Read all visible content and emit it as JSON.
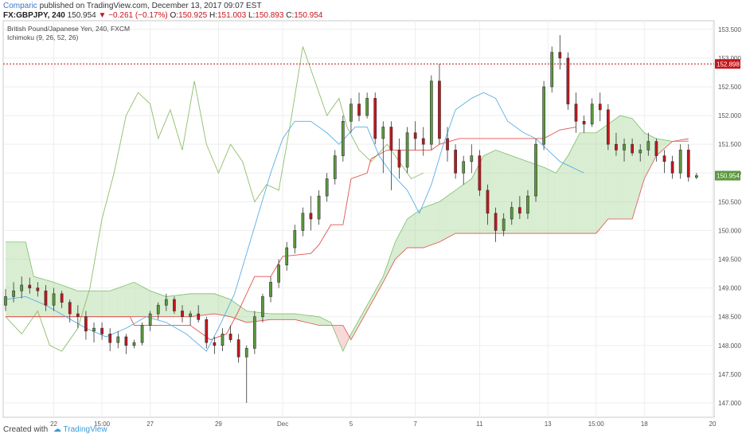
{
  "header": {
    "author": "Comparic",
    "published": "published on TradingView.com, December 13, 2017 09:07 EST"
  },
  "quote": {
    "symbol": "FX:GBPJPY, 240",
    "last": "150.954",
    "change": "▼ −0.261 (−0.17%)",
    "open_label": "O:",
    "open": "150.925",
    "high_label": "H:",
    "high": "151.003",
    "low_label": "L:",
    "low": "150.893",
    "close_label": "C:",
    "close": "150.954"
  },
  "footer": {
    "created_with": "Created with",
    "brand": "TradingView"
  },
  "colors": {
    "up": "#5b9a3c",
    "down": "#c4151c",
    "kijun": "#e0524f",
    "tenkan": "#5aaee6",
    "chikou": "#8fbd6a",
    "cloud_green": "#a8d89a",
    "cloud_red": "#f4a9a9"
  },
  "chart_data": {
    "type": "candlestick",
    "title": "British Pound/Japanese Yen, 240, FXCM",
    "indicator": "Ichimoku (9, 26, 52, 26)",
    "ylim": [
      146.75,
      153.65
    ],
    "xlim": [
      0,
      175
    ],
    "y_ticks": [
      "147.000",
      "147.500",
      "148.000",
      "148.500",
      "149.000",
      "149.500",
      "150.000",
      "150.500",
      "151.000",
      "151.500",
      "152.000",
      "152.500",
      "153.000",
      "153.500"
    ],
    "x_ticks": [
      {
        "pos": 12,
        "label": "22"
      },
      {
        "pos": 24,
        "label": "15:00"
      },
      {
        "pos": 36,
        "label": "27"
      },
      {
        "pos": 53,
        "label": "29"
      },
      {
        "pos": 69,
        "label": "Dec"
      },
      {
        "pos": 86,
        "label": "5"
      },
      {
        "pos": 102,
        "label": "7"
      },
      {
        "pos": 118,
        "label": "11"
      },
      {
        "pos": 135,
        "label": "13"
      },
      {
        "pos": 147,
        "label": "15:00"
      },
      {
        "pos": 159,
        "label": "18"
      },
      {
        "pos": 176,
        "label": "20"
      }
    ],
    "price_line": {
      "value": 152.898,
      "label": "152.898"
    },
    "last_price": {
      "value": 150.954,
      "label": "150.954"
    },
    "ohlc": [
      [
        148.7,
        148.98,
        148.6,
        148.85
      ],
      [
        148.85,
        149.1,
        148.75,
        148.95
      ],
      [
        148.95,
        149.2,
        148.82,
        149.05
      ],
      [
        149.05,
        149.18,
        148.9,
        149.0
      ],
      [
        149.0,
        149.1,
        148.85,
        148.95
      ],
      [
        148.95,
        149.05,
        148.6,
        148.7
      ],
      [
        148.7,
        149.0,
        148.6,
        148.9
      ],
      [
        148.9,
        148.95,
        148.65,
        148.75
      ],
      [
        148.75,
        148.8,
        148.4,
        148.55
      ],
      [
        148.55,
        148.7,
        148.3,
        148.5
      ],
      [
        148.5,
        148.6,
        148.1,
        148.25
      ],
      [
        148.25,
        148.4,
        148.05,
        148.3
      ],
      [
        148.3,
        148.4,
        148.1,
        148.2
      ],
      [
        148.2,
        148.3,
        147.9,
        148.05
      ],
      [
        148.05,
        148.25,
        147.95,
        148.15
      ],
      [
        148.15,
        148.2,
        147.85,
        148.0
      ],
      [
        148.0,
        148.1,
        147.95,
        148.05
      ],
      [
        148.05,
        148.4,
        148.0,
        148.35
      ],
      [
        148.35,
        148.6,
        148.25,
        148.55
      ],
      [
        148.55,
        148.75,
        148.45,
        148.7
      ],
      [
        148.7,
        148.9,
        148.6,
        148.8
      ],
      [
        148.8,
        148.85,
        148.55,
        148.6
      ],
      [
        148.6,
        148.7,
        148.4,
        148.5
      ],
      [
        148.5,
        148.6,
        148.35,
        148.55
      ],
      [
        148.55,
        148.7,
        148.4,
        148.45
      ],
      [
        148.45,
        148.5,
        147.95,
        148.05
      ],
      [
        148.05,
        148.15,
        147.85,
        148.0
      ],
      [
        148.0,
        148.3,
        147.9,
        148.2
      ],
      [
        148.2,
        148.35,
        148.05,
        148.1
      ],
      [
        148.1,
        148.2,
        147.7,
        147.8
      ],
      [
        147.8,
        148.0,
        147.0,
        147.95
      ],
      [
        147.95,
        148.6,
        147.85,
        148.5
      ],
      [
        148.5,
        148.9,
        148.4,
        148.85
      ],
      [
        148.85,
        149.2,
        148.75,
        149.1
      ],
      [
        149.1,
        149.5,
        149.0,
        149.4
      ],
      [
        149.4,
        149.8,
        149.3,
        149.7
      ],
      [
        149.7,
        150.1,
        149.6,
        150.0
      ],
      [
        150.0,
        150.4,
        149.9,
        150.3
      ],
      [
        150.3,
        150.6,
        150.0,
        150.2
      ],
      [
        150.2,
        150.7,
        150.1,
        150.6
      ],
      [
        150.6,
        151.0,
        150.5,
        150.9
      ],
      [
        150.9,
        151.4,
        150.8,
        151.3
      ],
      [
        151.3,
        152.0,
        151.2,
        151.9
      ],
      [
        151.9,
        152.3,
        151.7,
        152.2
      ],
      [
        152.2,
        152.4,
        151.9,
        152.0
      ],
      [
        152.0,
        152.4,
        151.95,
        152.3
      ],
      [
        152.3,
        152.4,
        151.5,
        151.6
      ],
      [
        151.6,
        151.9,
        151.0,
        151.8
      ],
      [
        151.8,
        151.9,
        150.7,
        151.4
      ],
      [
        151.4,
        151.6,
        150.9,
        151.1
      ],
      [
        151.1,
        151.8,
        151.0,
        151.7
      ],
      [
        151.7,
        151.9,
        151.4,
        151.6
      ],
      [
        151.6,
        151.8,
        151.3,
        151.5
      ],
      [
        151.5,
        152.7,
        151.4,
        152.6
      ],
      [
        152.6,
        152.9,
        151.5,
        151.6
      ],
      [
        151.6,
        151.8,
        151.2,
        151.4
      ],
      [
        151.4,
        151.5,
        150.9,
        151.0
      ],
      [
        151.0,
        151.3,
        150.8,
        151.2
      ],
      [
        151.2,
        151.5,
        151.0,
        151.3
      ],
      [
        151.3,
        151.4,
        150.6,
        150.7
      ],
      [
        150.7,
        150.8,
        150.1,
        150.3
      ],
      [
        150.3,
        150.4,
        149.8,
        150.0
      ],
      [
        150.0,
        150.3,
        149.9,
        150.2
      ],
      [
        150.2,
        150.5,
        150.1,
        150.4
      ],
      [
        150.4,
        150.6,
        150.2,
        150.3
      ],
      [
        150.3,
        150.7,
        150.2,
        150.6
      ],
      [
        150.6,
        151.6,
        150.5,
        151.5
      ],
      [
        151.5,
        152.6,
        151.4,
        152.5
      ],
      [
        152.5,
        153.2,
        152.4,
        153.1
      ],
      [
        153.1,
        153.4,
        152.8,
        153.0
      ],
      [
        153.0,
        153.1,
        152.1,
        152.2
      ],
      [
        152.2,
        152.4,
        151.7,
        151.9
      ],
      [
        151.9,
        152.0,
        151.7,
        151.85
      ],
      [
        151.85,
        152.3,
        151.8,
        152.2
      ],
      [
        152.2,
        152.4,
        151.9,
        152.1
      ],
      [
        152.1,
        152.2,
        151.4,
        151.5
      ],
      [
        151.5,
        151.7,
        151.3,
        151.4
      ],
      [
        151.4,
        151.6,
        151.2,
        151.5
      ],
      [
        151.5,
        151.6,
        151.3,
        151.35
      ],
      [
        151.35,
        151.5,
        151.2,
        151.4
      ],
      [
        151.4,
        151.7,
        151.3,
        151.55
      ],
      [
        151.55,
        151.6,
        151.2,
        151.3
      ],
      [
        151.3,
        151.4,
        151.0,
        151.2
      ],
      [
        151.2,
        151.3,
        150.9,
        151.0
      ],
      [
        151.0,
        151.5,
        150.9,
        151.4
      ],
      [
        151.4,
        151.5,
        150.85,
        150.93
      ],
      [
        150.925,
        151.003,
        150.893,
        150.954
      ]
    ],
    "kijun": [
      {
        "x": 0,
        "y": 148.5
      },
      {
        "x": 30,
        "y": 148.5
      },
      {
        "x": 31,
        "y": 148.5
      },
      {
        "x": 32,
        "y": 148.35
      },
      {
        "x": 40,
        "y": 148.35
      },
      {
        "x": 46,
        "y": 148.35
      },
      {
        "x": 51,
        "y": 148.1
      },
      {
        "x": 55,
        "y": 148.2
      },
      {
        "x": 58,
        "y": 148.6
      },
      {
        "x": 62,
        "y": 149.2
      },
      {
        "x": 66,
        "y": 149.2
      },
      {
        "x": 69,
        "y": 149.55
      },
      {
        "x": 76,
        "y": 149.6
      },
      {
        "x": 78,
        "y": 149.75
      },
      {
        "x": 81,
        "y": 150.1
      },
      {
        "x": 84,
        "y": 150.1
      },
      {
        "x": 86,
        "y": 150.9
      },
      {
        "x": 90,
        "y": 151.0
      },
      {
        "x": 91,
        "y": 151.25
      },
      {
        "x": 95,
        "y": 151.4
      },
      {
        "x": 104,
        "y": 151.4
      },
      {
        "x": 106,
        "y": 151.4
      },
      {
        "x": 108,
        "y": 151.5
      },
      {
        "x": 113,
        "y": 151.6
      },
      {
        "x": 134,
        "y": 151.6
      },
      {
        "x": 138,
        "y": 151.75
      },
      {
        "x": 142,
        "y": 151.8
      }
    ],
    "tenkan": [
      {
        "x": 0,
        "y": 148.8
      },
      {
        "x": 5,
        "y": 148.85
      },
      {
        "x": 10,
        "y": 148.7
      },
      {
        "x": 15,
        "y": 148.5
      },
      {
        "x": 20,
        "y": 148.3
      },
      {
        "x": 25,
        "y": 148.15
      },
      {
        "x": 30,
        "y": 148.3
      },
      {
        "x": 35,
        "y": 148.5
      },
      {
        "x": 40,
        "y": 148.4
      },
      {
        "x": 45,
        "y": 148.2
      },
      {
        "x": 50,
        "y": 147.9
      },
      {
        "x": 53,
        "y": 148.3
      },
      {
        "x": 57,
        "y": 148.9
      },
      {
        "x": 60,
        "y": 149.6
      },
      {
        "x": 63,
        "y": 150.3
      },
      {
        "x": 66,
        "y": 151.0
      },
      {
        "x": 69,
        "y": 151.6
      },
      {
        "x": 72,
        "y": 151.9
      },
      {
        "x": 76,
        "y": 151.9
      },
      {
        "x": 80,
        "y": 151.7
      },
      {
        "x": 83,
        "y": 151.5
      },
      {
        "x": 87,
        "y": 151.8
      },
      {
        "x": 90,
        "y": 151.8
      },
      {
        "x": 93,
        "y": 151.3
      },
      {
        "x": 96,
        "y": 151.0
      },
      {
        "x": 100,
        "y": 150.7
      },
      {
        "x": 103,
        "y": 150.3
      },
      {
        "x": 106,
        "y": 150.8
      },
      {
        "x": 109,
        "y": 151.5
      },
      {
        "x": 112,
        "y": 152.1
      },
      {
        "x": 116,
        "y": 152.3
      },
      {
        "x": 119,
        "y": 152.4
      },
      {
        "x": 122,
        "y": 152.3
      },
      {
        "x": 125,
        "y": 151.9
      },
      {
        "x": 129,
        "y": 151.7
      },
      {
        "x": 132,
        "y": 151.6
      },
      {
        "x": 135,
        "y": 151.4
      },
      {
        "x": 138,
        "y": 151.2
      },
      {
        "x": 141,
        "y": 151.1
      },
      {
        "x": 144,
        "y": 151.0
      }
    ],
    "chikou": [
      {
        "x": 0,
        "y": 148.5
      },
      {
        "x": 4,
        "y": 148.2
      },
      {
        "x": 8,
        "y": 148.6
      },
      {
        "x": 11,
        "y": 148.0
      },
      {
        "x": 14,
        "y": 147.9
      },
      {
        "x": 18,
        "y": 148.3
      },
      {
        "x": 21,
        "y": 149.0
      },
      {
        "x": 24,
        "y": 150.2
      },
      {
        "x": 27,
        "y": 151.0
      },
      {
        "x": 30,
        "y": 152.0
      },
      {
        "x": 33,
        "y": 152.4
      },
      {
        "x": 36,
        "y": 152.2
      },
      {
        "x": 38,
        "y": 151.6
      },
      {
        "x": 41,
        "y": 152.1
      },
      {
        "x": 44,
        "y": 151.4
      },
      {
        "x": 47,
        "y": 152.6
      },
      {
        "x": 50,
        "y": 151.5
      },
      {
        "x": 53,
        "y": 151.0
      },
      {
        "x": 56,
        "y": 151.5
      },
      {
        "x": 59,
        "y": 151.2
      },
      {
        "x": 62,
        "y": 150.5
      },
      {
        "x": 65,
        "y": 150.8
      },
      {
        "x": 68,
        "y": 150.7
      },
      {
        "x": 71,
        "y": 151.9
      },
      {
        "x": 74,
        "y": 153.2
      },
      {
        "x": 77,
        "y": 152.6
      },
      {
        "x": 80,
        "y": 152.0
      },
      {
        "x": 83,
        "y": 152.3
      },
      {
        "x": 85,
        "y": 151.8
      },
      {
        "x": 88,
        "y": 151.4
      },
      {
        "x": 91,
        "y": 151.2
      },
      {
        "x": 95,
        "y": 151.5
      },
      {
        "x": 98,
        "y": 151.2
      },
      {
        "x": 101,
        "y": 150.9
      },
      {
        "x": 104,
        "y": 151.0
      }
    ],
    "senkou_a": [
      {
        "x": 0,
        "y": 149.8
      },
      {
        "x": 5,
        "y": 149.8
      },
      {
        "x": 7,
        "y": 149.2
      },
      {
        "x": 12,
        "y": 149.1
      },
      {
        "x": 18,
        "y": 148.95
      },
      {
        "x": 26,
        "y": 148.95
      },
      {
        "x": 32,
        "y": 149.1
      },
      {
        "x": 36,
        "y": 148.95
      },
      {
        "x": 40,
        "y": 148.85
      },
      {
        "x": 46,
        "y": 148.9
      },
      {
        "x": 52,
        "y": 148.9
      },
      {
        "x": 56,
        "y": 148.8
      },
      {
        "x": 60,
        "y": 148.6
      },
      {
        "x": 66,
        "y": 148.55
      },
      {
        "x": 72,
        "y": 148.55
      },
      {
        "x": 78,
        "y": 148.5
      },
      {
        "x": 81,
        "y": 148.4
      },
      {
        "x": 84,
        "y": 147.9
      },
      {
        "x": 86,
        "y": 148.2
      },
      {
        "x": 90,
        "y": 148.7
      },
      {
        "x": 94,
        "y": 149.2
      },
      {
        "x": 97,
        "y": 149.8
      },
      {
        "x": 100,
        "y": 150.2
      },
      {
        "x": 104,
        "y": 150.4
      },
      {
        "x": 108,
        "y": 150.5
      },
      {
        "x": 112,
        "y": 150.7
      },
      {
        "x": 116,
        "y": 150.9
      },
      {
        "x": 119,
        "y": 151.3
      },
      {
        "x": 122,
        "y": 151.4
      },
      {
        "x": 126,
        "y": 151.3
      },
      {
        "x": 130,
        "y": 151.2
      },
      {
        "x": 134,
        "y": 151.1
      },
      {
        "x": 137,
        "y": 151.0
      },
      {
        "x": 140,
        "y": 151.3
      },
      {
        "x": 143,
        "y": 151.7
      },
      {
        "x": 147,
        "y": 151.7
      },
      {
        "x": 150,
        "y": 151.85
      },
      {
        "x": 153,
        "y": 152.0
      },
      {
        "x": 156,
        "y": 151.95
      },
      {
        "x": 159,
        "y": 151.7
      },
      {
        "x": 162,
        "y": 151.6
      },
      {
        "x": 166,
        "y": 151.55
      },
      {
        "x": 170,
        "y": 151.55
      }
    ],
    "senkou_b": [
      {
        "x": 0,
        "y": 148.5
      },
      {
        "x": 30,
        "y": 148.5
      },
      {
        "x": 32,
        "y": 148.5
      },
      {
        "x": 40,
        "y": 148.5
      },
      {
        "x": 46,
        "y": 148.5
      },
      {
        "x": 52,
        "y": 148.55
      },
      {
        "x": 56,
        "y": 148.5
      },
      {
        "x": 60,
        "y": 148.4
      },
      {
        "x": 66,
        "y": 148.45
      },
      {
        "x": 72,
        "y": 148.45
      },
      {
        "x": 78,
        "y": 148.35
      },
      {
        "x": 84,
        "y": 148.35
      },
      {
        "x": 86,
        "y": 148.1
      },
      {
        "x": 90,
        "y": 148.6
      },
      {
        "x": 94,
        "y": 149.1
      },
      {
        "x": 97,
        "y": 149.5
      },
      {
        "x": 100,
        "y": 149.7
      },
      {
        "x": 104,
        "y": 149.7
      },
      {
        "x": 108,
        "y": 149.8
      },
      {
        "x": 112,
        "y": 149.95
      },
      {
        "x": 147,
        "y": 149.95
      },
      {
        "x": 150,
        "y": 150.2
      },
      {
        "x": 156,
        "y": 150.2
      },
      {
        "x": 159,
        "y": 150.9
      },
      {
        "x": 162,
        "y": 151.3
      },
      {
        "x": 166,
        "y": 151.55
      },
      {
        "x": 170,
        "y": 151.6
      }
    ]
  }
}
